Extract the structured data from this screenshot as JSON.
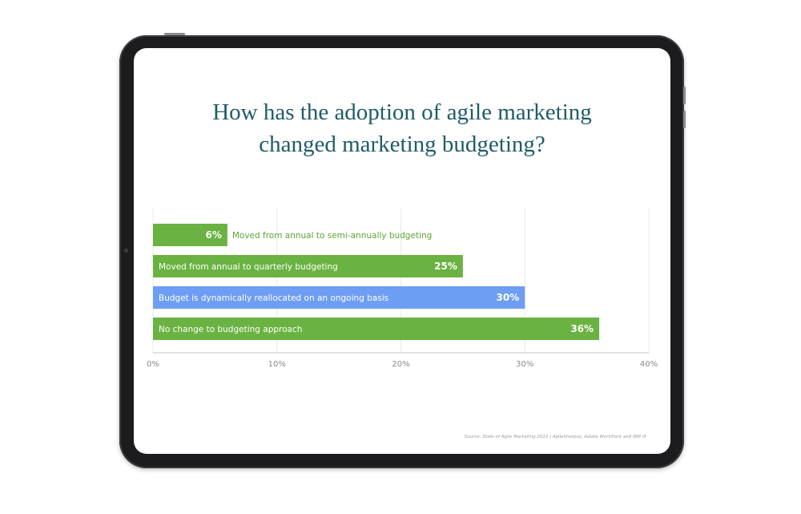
{
  "chart_data": {
    "type": "bar",
    "orientation": "horizontal",
    "title_lines": [
      "How has the adoption of agile marketing",
      "changed marketing budgeting?"
    ],
    "categories": [
      "Moved from annual to semi-annually budgeting",
      "Moved from annual to quarterly budgeting",
      "Budget is dynamically reallocated on an ongoing basis",
      "No change to budgeting approach"
    ],
    "values": [
      6,
      25,
      30,
      36
    ],
    "value_labels": [
      "6%",
      "25%",
      "30%",
      "36%"
    ],
    "bar_colors": [
      "#6ab241",
      "#6ab241",
      "#6d9ef3",
      "#6ab241"
    ],
    "xlim": [
      0,
      40
    ],
    "x_ticks": [
      0,
      10,
      20,
      30,
      40
    ],
    "x_tick_labels": [
      "0%",
      "10%",
      "20%",
      "30%",
      "40%"
    ],
    "grid": true,
    "source": "Source: State of Agile Marketing 2022 | AgileSherpas, Adobe Workfront and IBM iX"
  }
}
